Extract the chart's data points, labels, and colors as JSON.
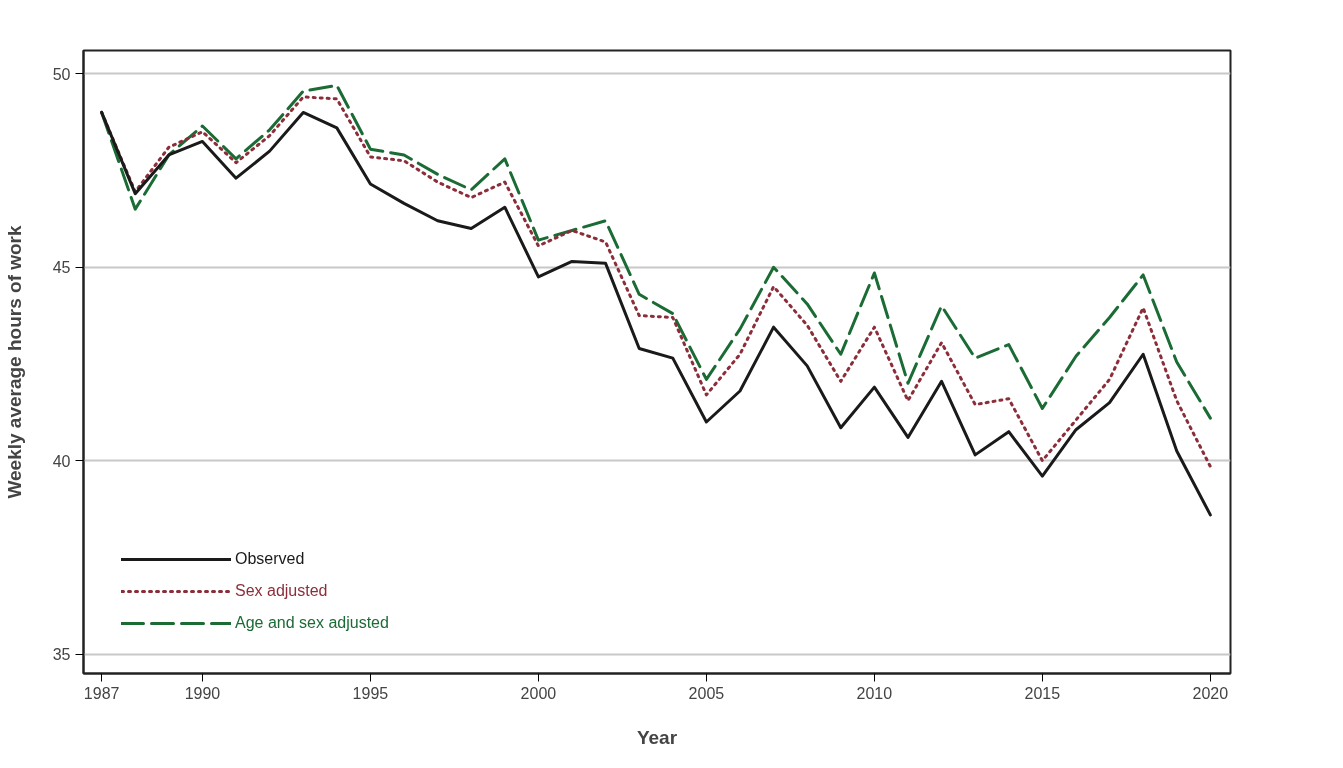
{
  "chart_data": {
    "type": "line",
    "xlabel": "Year",
    "ylabel": "Weekly average hours of work",
    "x": [
      1987,
      1988,
      1989,
      1990,
      1991,
      1992,
      1993,
      1994,
      1995,
      1996,
      1997,
      1998,
      1999,
      2000,
      2001,
      2002,
      2003,
      2004,
      2005,
      2006,
      2007,
      2008,
      2009,
      2010,
      2011,
      2012,
      2013,
      2014,
      2015,
      2016,
      2017,
      2018,
      2019,
      2020
    ],
    "series": [
      {
        "name": "Observed",
        "color": "#1a1a1a",
        "line_style": "solid",
        "values": [
          49.0,
          46.9,
          47.9,
          48.25,
          47.3,
          48.0,
          49.0,
          48.6,
          47.15,
          46.65,
          46.2,
          46.0,
          46.55,
          44.75,
          45.15,
          45.1,
          42.9,
          42.65,
          41.0,
          41.8,
          43.45,
          42.45,
          40.85,
          41.9,
          40.6,
          42.05,
          40.15,
          40.75,
          39.6,
          40.8,
          41.5,
          42.75,
          40.25,
          38.6
        ]
      },
      {
        "name": "Sex adjusted",
        "color": "#8b2e3a",
        "line_style": "dotted",
        "values": [
          49.0,
          46.95,
          48.1,
          48.5,
          47.7,
          48.4,
          49.4,
          49.35,
          47.85,
          47.75,
          47.2,
          46.8,
          47.2,
          45.55,
          45.95,
          45.65,
          43.75,
          43.7,
          41.7,
          42.75,
          44.5,
          43.5,
          42.05,
          43.45,
          41.55,
          43.05,
          41.45,
          41.6,
          40.0,
          41.05,
          42.1,
          43.95,
          41.55,
          39.85
        ]
      },
      {
        "name": "Age and sex adjusted",
        "color": "#1b6b35",
        "line_style": "dashed",
        "values": [
          49.0,
          46.5,
          47.9,
          48.65,
          47.8,
          48.55,
          49.55,
          49.7,
          48.05,
          47.9,
          47.4,
          47.0,
          47.8,
          45.7,
          45.95,
          46.2,
          44.3,
          43.8,
          42.1,
          43.4,
          45.0,
          44.05,
          42.75,
          44.85,
          42.0,
          44.0,
          42.65,
          43.0,
          41.35,
          42.7,
          43.7,
          44.8,
          42.55,
          41.1
        ]
      }
    ],
    "xlim": [
      1986.46,
      2020.6
    ],
    "ylim": [
      34.5,
      50.6
    ],
    "xticks": [
      1987,
      1990,
      1995,
      2000,
      2005,
      2010,
      2015,
      2020
    ],
    "yticks": [
      35,
      40,
      45,
      50
    ],
    "grid": "y",
    "legend": "bottom left",
    "marker": "none"
  }
}
